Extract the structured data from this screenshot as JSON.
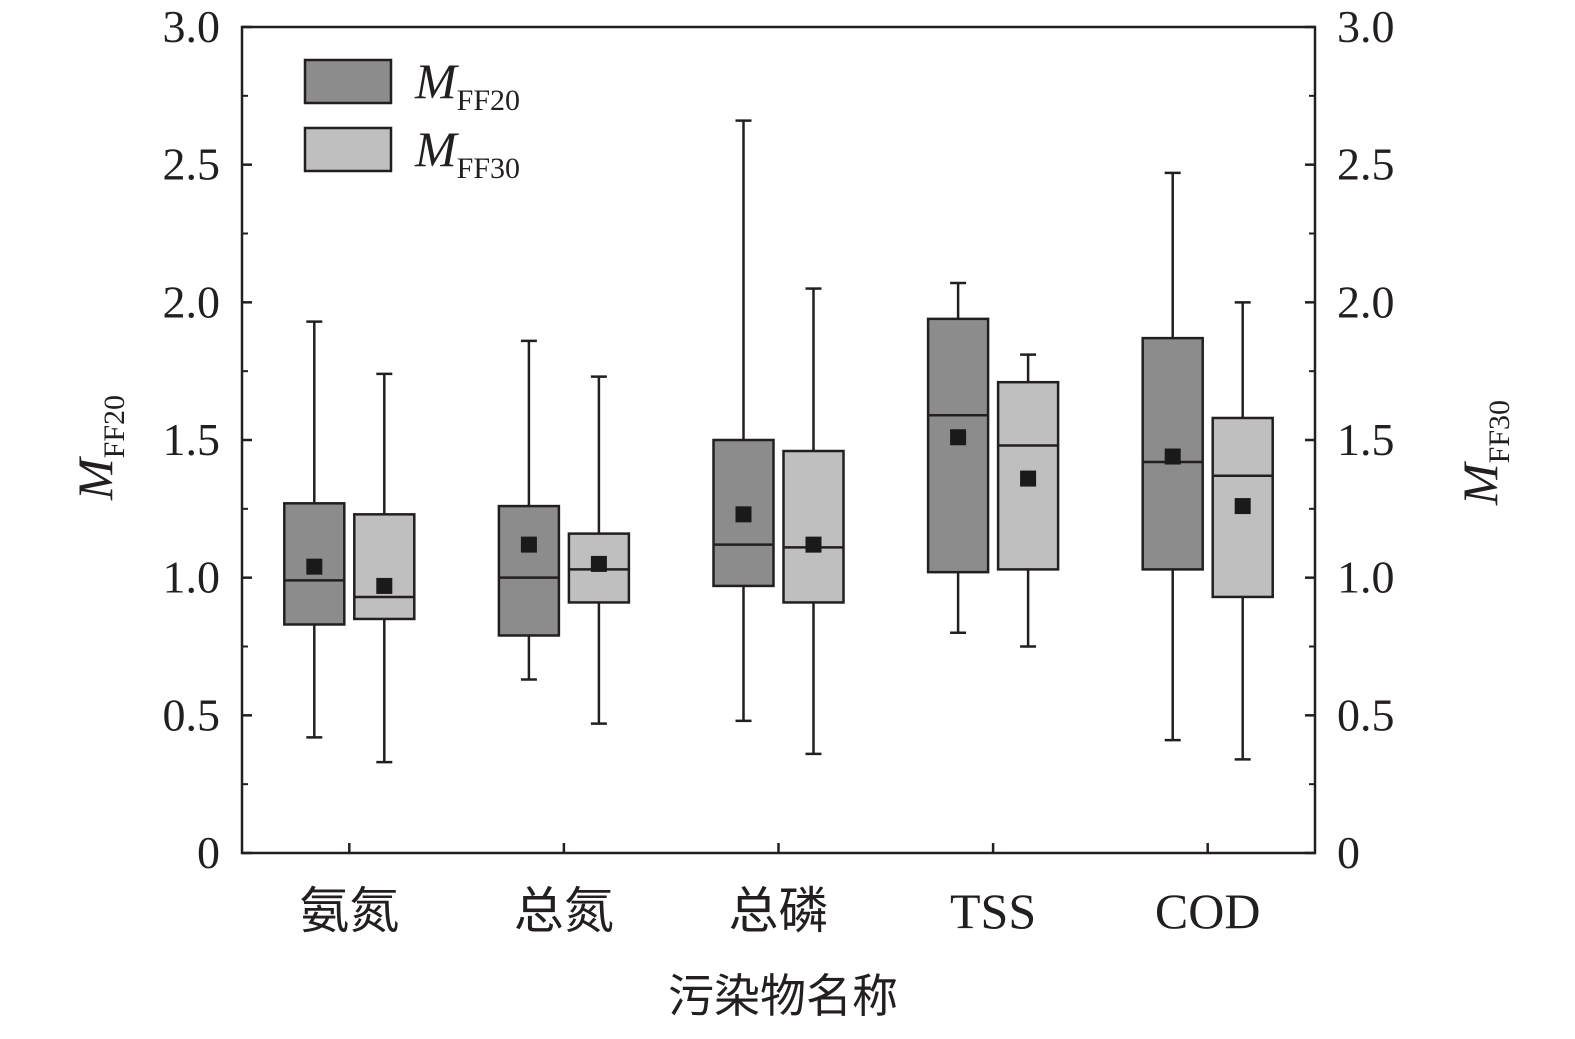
{
  "chart_data": {
    "type": "box",
    "xlabel": "污染物名称",
    "ylabel_left": {
      "main": "M",
      "sub": "FF20"
    },
    "ylabel_right": {
      "main": "M",
      "sub": "FF30"
    },
    "ylim": [
      0,
      3.0
    ],
    "yticks": [
      "0",
      "0.5",
      "1.0",
      "1.5",
      "2.0",
      "2.5",
      "3.0"
    ],
    "ytick_values": [
      0,
      0.5,
      1.0,
      1.5,
      2.0,
      2.5,
      3.0
    ],
    "legend_position": "top-left",
    "categories": [
      "氨氮",
      "总氮",
      "总磷",
      "TSS",
      "COD"
    ],
    "series": [
      {
        "name_main": "M",
        "name_sub": "FF20",
        "color": "#8c8c8c",
        "boxes": [
          {
            "whisker_low": 0.42,
            "q1": 0.83,
            "median": 0.99,
            "q3": 1.27,
            "whisker_high": 1.93,
            "mean": 1.04
          },
          {
            "whisker_low": 0.63,
            "q1": 0.79,
            "median": 1.0,
            "q3": 1.26,
            "whisker_high": 1.86,
            "mean": 1.12
          },
          {
            "whisker_low": 0.48,
            "q1": 0.97,
            "median": 1.12,
            "q3": 1.5,
            "whisker_high": 2.66,
            "mean": 1.23
          },
          {
            "whisker_low": 0.8,
            "q1": 1.02,
            "median": 1.59,
            "q3": 1.94,
            "whisker_high": 2.07,
            "mean": 1.51
          },
          {
            "whisker_low": 0.41,
            "q1": 1.03,
            "median": 1.42,
            "q3": 1.87,
            "whisker_high": 2.47,
            "mean": 1.44
          }
        ]
      },
      {
        "name_main": "M",
        "name_sub": "FF30",
        "color": "#bfbfbf",
        "boxes": [
          {
            "whisker_low": 0.33,
            "q1": 0.85,
            "median": 0.93,
            "q3": 1.23,
            "whisker_high": 1.74,
            "mean": 0.97
          },
          {
            "whisker_low": 0.47,
            "q1": 0.91,
            "median": 1.03,
            "q3": 1.16,
            "whisker_high": 1.73,
            "mean": 1.05
          },
          {
            "whisker_low": 0.36,
            "q1": 0.91,
            "median": 1.11,
            "q3": 1.46,
            "whisker_high": 2.05,
            "mean": 1.12
          },
          {
            "whisker_low": 0.75,
            "q1": 1.03,
            "median": 1.48,
            "q3": 1.71,
            "whisker_high": 1.81,
            "mean": 1.36
          },
          {
            "whisker_low": 0.34,
            "q1": 0.93,
            "median": 1.37,
            "q3": 1.58,
            "whisker_high": 2.0,
            "mean": 1.26
          }
        ]
      }
    ]
  }
}
